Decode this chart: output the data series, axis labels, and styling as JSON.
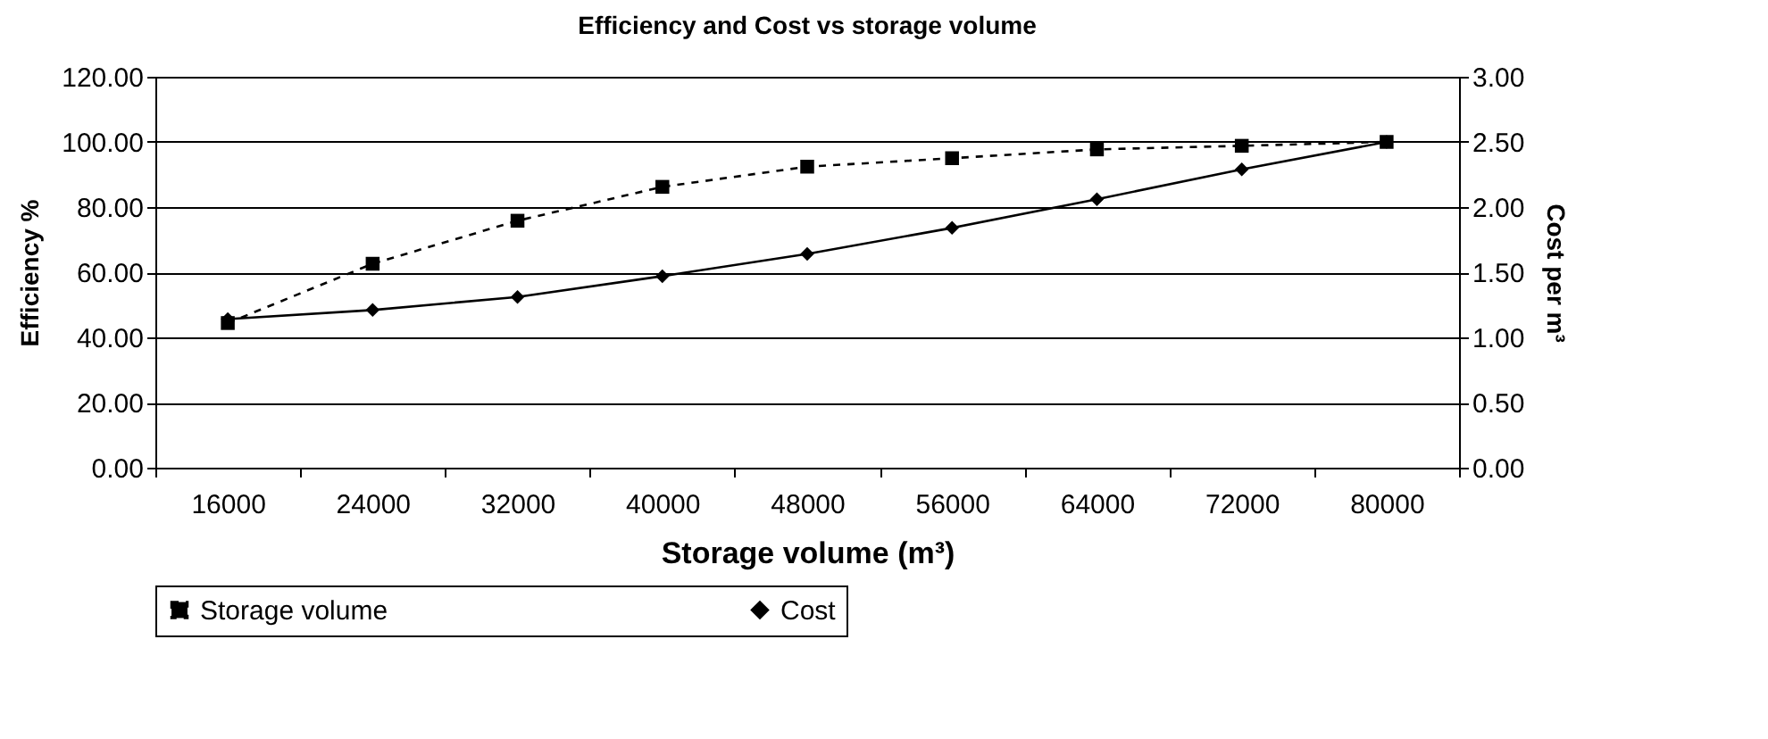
{
  "chart_data": {
    "type": "line",
    "title": "Efficiency and Cost  vs storage volume",
    "xlabel": "Storage volume (m³)",
    "ylabel": "Efficiency %",
    "y2label": "Cost per m³",
    "categories": [
      "16000",
      "24000",
      "32000",
      "40000",
      "48000",
      "56000",
      "64000",
      "72000",
      "80000"
    ],
    "series": [
      {
        "name": "Storage volume",
        "color": "#000000",
        "marker": "square",
        "line_style": "dashed",
        "values": [
          44.4,
          62.6,
          75.8,
          86.2,
          92.4,
          95.0,
          97.7,
          98.8,
          100.0
        ]
      },
      {
        "name": "Cost",
        "color": "#000000",
        "marker": "diamond",
        "line_style": "solid",
        "axis": "y2",
        "values": [
          1.14,
          1.21,
          1.31,
          1.47,
          1.64,
          1.84,
          2.06,
          2.29,
          2.5
        ]
      }
    ],
    "ylim": [
      0,
      120
    ],
    "yticks": [
      {
        "value": 0,
        "label": "0.00"
      },
      {
        "value": 20,
        "label": "20.00"
      },
      {
        "value": 40,
        "label": "40.00"
      },
      {
        "value": 60,
        "label": "60.00"
      },
      {
        "value": 80,
        "label": "80.00"
      },
      {
        "value": 100,
        "label": "100.00"
      },
      {
        "value": 120,
        "label": "120.00"
      }
    ],
    "y2lim": [
      0,
      3
    ],
    "y2ticks": [
      {
        "value": 0,
        "label": "0.00"
      },
      {
        "value": 0.5,
        "label": "0.50"
      },
      {
        "value": 1,
        "label": "1.00"
      },
      {
        "value": 1.5,
        "label": "1.50"
      },
      {
        "value": 2,
        "label": "2.00"
      },
      {
        "value": 2.5,
        "label": "2.50"
      },
      {
        "value": 3,
        "label": "3.00"
      }
    ],
    "grid": "y",
    "legend": "bottom"
  }
}
